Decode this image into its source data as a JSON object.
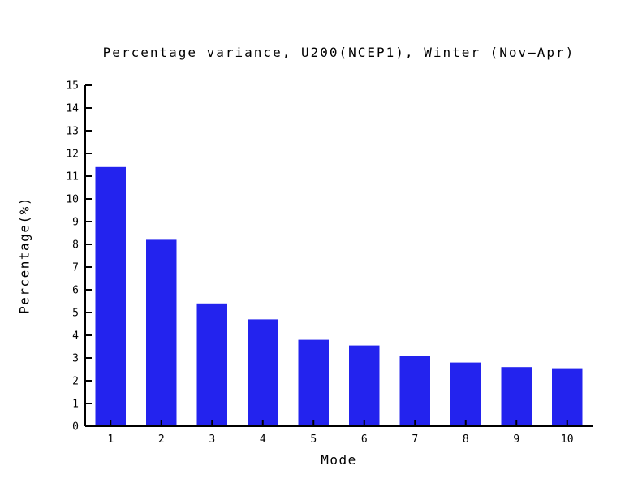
{
  "chart_data": {
    "type": "bar",
    "title": "Percentage variance, U200(NCEP1), Winter (Nov–Apr)",
    "xlabel": "Mode",
    "ylabel": "Percentage(%)",
    "categories": [
      "1",
      "2",
      "3",
      "4",
      "5",
      "6",
      "7",
      "8",
      "9",
      "10"
    ],
    "values": [
      11.4,
      8.2,
      5.4,
      4.7,
      3.8,
      3.55,
      3.1,
      2.8,
      2.6,
      2.55
    ],
    "ylim": [
      0,
      15
    ],
    "ytick_step": 1,
    "bar_color": "#2323ee",
    "axis_color": "#000000",
    "grid": false,
    "legend": "none"
  }
}
